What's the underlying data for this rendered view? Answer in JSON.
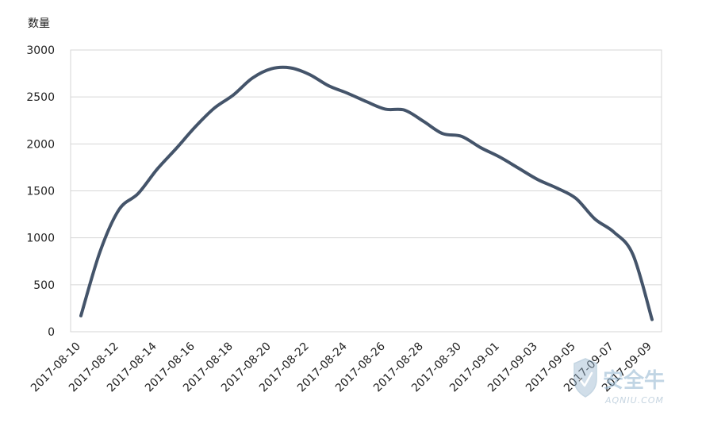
{
  "chart_data": {
    "type": "line",
    "title": "",
    "ylabel": "数量",
    "xlabel": "",
    "ylim": [
      0,
      3000
    ],
    "yticks": [
      0,
      500,
      1000,
      1500,
      2000,
      2500,
      3000
    ],
    "grid": true,
    "legend": "none",
    "line_color": "#44546a",
    "x": [
      "2017-08-10",
      "2017-08-11",
      "2017-08-12",
      "2017-08-13",
      "2017-08-14",
      "2017-08-15",
      "2017-08-16",
      "2017-08-17",
      "2017-08-18",
      "2017-08-19",
      "2017-08-20",
      "2017-08-21",
      "2017-08-22",
      "2017-08-23",
      "2017-08-24",
      "2017-08-25",
      "2017-08-26",
      "2017-08-27",
      "2017-08-28",
      "2017-08-29",
      "2017-08-30",
      "2017-08-31",
      "2017-09-01",
      "2017-09-02",
      "2017-09-03",
      "2017-09-04",
      "2017-09-05",
      "2017-09-06",
      "2017-09-07",
      "2017-09-08",
      "2017-09-09"
    ],
    "xtick_labels": [
      "2017-08-10",
      "2017-08-12",
      "2017-08-14",
      "2017-08-16",
      "2017-08-18",
      "2017-08-20",
      "2017-08-22",
      "2017-08-24",
      "2017-08-26",
      "2017-08-28",
      "2017-08-30",
      "2017-09-01",
      "2017-09-03",
      "2017-09-05",
      "2017-09-07",
      "2017-09-09"
    ],
    "series": [
      {
        "values": [
          170,
          850,
          1300,
          1470,
          1730,
          1950,
          2180,
          2380,
          2520,
          2700,
          2800,
          2810,
          2740,
          2620,
          2540,
          2450,
          2370,
          2360,
          2240,
          2110,
          2080,
          1960,
          1860,
          1740,
          1620,
          1530,
          1420,
          1200,
          1060,
          820,
          130
        ]
      }
    ]
  },
  "watermark": {
    "text": "安全牛",
    "sub": "AQNIU.COM"
  }
}
